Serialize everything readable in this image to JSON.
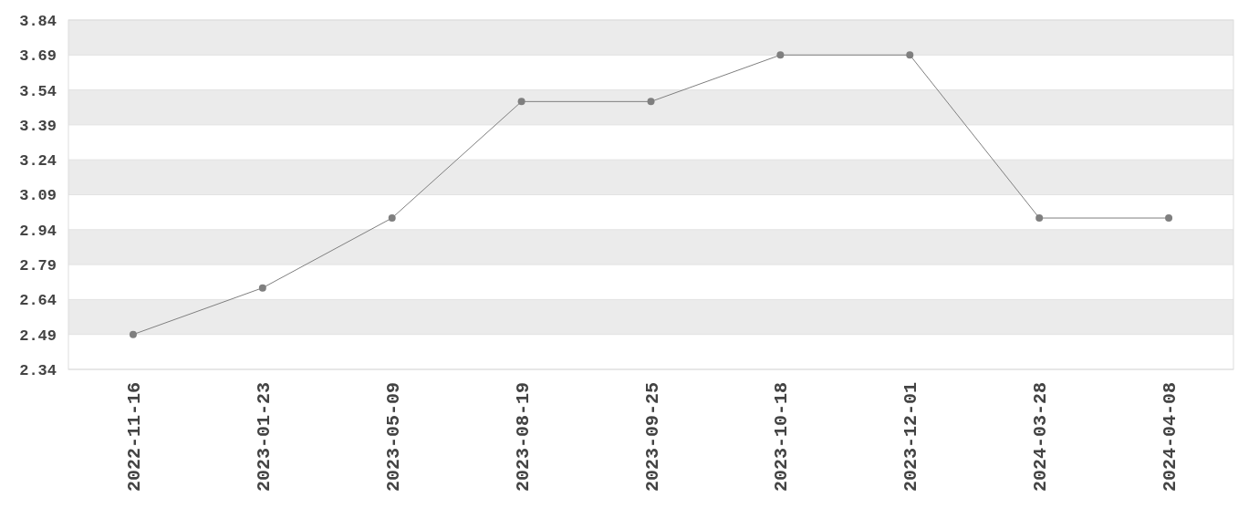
{
  "chart_data": {
    "type": "line",
    "categories": [
      "2022-11-16",
      "2023-01-23",
      "2023-05-09",
      "2023-08-19",
      "2023-09-25",
      "2023-10-18",
      "2023-12-01",
      "2024-03-28",
      "2024-04-08"
    ],
    "series": [
      {
        "color": "#7f7f7f",
        "values": [
          2.49,
          2.69,
          2.99,
          3.49,
          3.49,
          3.69,
          3.69,
          2.99,
          2.99
        ]
      }
    ],
    "ylim": [
      2.34,
      3.84
    ],
    "yticks": [
      2.34,
      2.49,
      2.64,
      2.79,
      2.94,
      3.09,
      3.24,
      3.39,
      3.54,
      3.69,
      3.84
    ],
    "grid": "y",
    "marker": "circle",
    "line_style": "solid"
  }
}
